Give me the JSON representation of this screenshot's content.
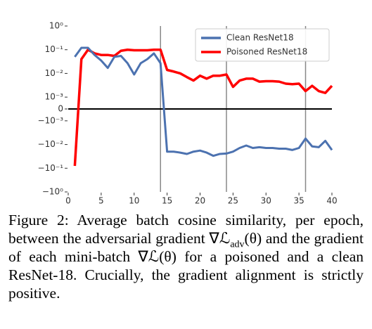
{
  "chart_data": {
    "type": "line",
    "xlim": [
      0,
      40
    ],
    "xticks": [
      0,
      5,
      10,
      15,
      20,
      25,
      30,
      35,
      40
    ],
    "ylim": [
      -1,
      1
    ],
    "yscale": "symlog",
    "linthresh": 0.001,
    "linscale": 0.5,
    "yticks": [
      {
        "value": 1,
        "label": "10⁰"
      },
      {
        "value": 0.1,
        "label": "10⁻¹"
      },
      {
        "value": 0.01,
        "label": "10⁻²"
      },
      {
        "value": 0.001,
        "label": "10⁻³"
      },
      0,
      {
        "value": -0.001,
        "label": "−10⁻³"
      },
      {
        "value": -0.01,
        "label": "−10⁻²"
      },
      {
        "value": -0.1,
        "label": "−10⁻¹"
      },
      {
        "value": -1,
        "label": "−10⁰"
      }
    ],
    "vlines": [
      14,
      24,
      36
    ],
    "vline_color": "#888888",
    "hline": 0,
    "hline_color": "#000000",
    "legend": "upper right",
    "x": [
      1,
      2,
      3,
      4,
      5,
      6,
      7,
      8,
      9,
      10,
      11,
      12,
      13,
      14,
      15,
      16,
      17,
      18,
      19,
      20,
      21,
      22,
      23,
      24,
      25,
      26,
      27,
      28,
      29,
      30,
      31,
      32,
      33,
      34,
      35,
      36,
      37,
      38,
      39,
      40
    ],
    "series": [
      {
        "name": "Clean ResNet18",
        "color": "#4c72b0",
        "values": [
          0.05,
          0.12,
          0.12,
          0.06,
          0.035,
          0.017,
          0.05,
          0.055,
          0.027,
          0.009,
          0.027,
          0.04,
          0.07,
          0.027,
          -0.02,
          -0.02,
          -0.022,
          -0.025,
          -0.02,
          -0.018,
          -0.022,
          -0.03,
          -0.025,
          -0.024,
          -0.02,
          -0.014,
          -0.011,
          -0.014,
          -0.013,
          -0.014,
          -0.014,
          -0.015,
          -0.015,
          -0.017,
          -0.014,
          -0.0056,
          -0.012,
          -0.013,
          -0.007,
          -0.017
        ]
      },
      {
        "name": "Poisoned ResNet18",
        "color": "#ff0000",
        "values": [
          -0.08,
          0.04,
          0.1,
          0.07,
          0.06,
          0.06,
          0.055,
          0.09,
          0.1,
          0.095,
          0.095,
          0.095,
          0.1,
          0.1,
          0.014,
          0.012,
          0.01,
          0.007,
          0.005,
          0.008,
          0.006,
          0.008,
          0.008,
          0.009,
          0.0027,
          0.005,
          0.006,
          0.006,
          0.0045,
          0.0047,
          0.0047,
          0.0045,
          0.0037,
          0.0035,
          0.0037,
          0.0018,
          0.003,
          0.0018,
          0.0015,
          0.003
        ]
      }
    ]
  },
  "caption": [
    "Figure 2:  Average batch cosine similarity, per epoch, between the adversarial gradient ∇ℒ",
    "adv",
    "(θ) and the gradient of each mini-batch ∇ℒ(θ) for a poisoned and a clean ResNet-18. Crucially, the gradient alignment is strictly positive."
  ]
}
